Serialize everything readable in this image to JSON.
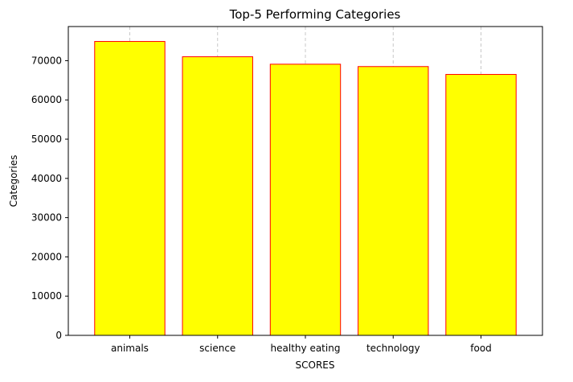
{
  "chart_data": {
    "type": "bar",
    "title": "Top-5 Performing Categories",
    "xlabel": "SCORES",
    "ylabel": "Categories",
    "categories": [
      "animals",
      "science",
      "healthy eating",
      "technology",
      "food"
    ],
    "values": [
      74900,
      71000,
      69100,
      68500,
      66500
    ],
    "ylim": [
      0,
      78700
    ],
    "yticks": [
      0,
      10000,
      20000,
      30000,
      40000,
      50000,
      60000,
      70000
    ],
    "grid": "x-axis dashed",
    "bar_color": "#ffff00",
    "bar_edge_color": "#ff0000",
    "grid_color": "#c8c8c8"
  }
}
